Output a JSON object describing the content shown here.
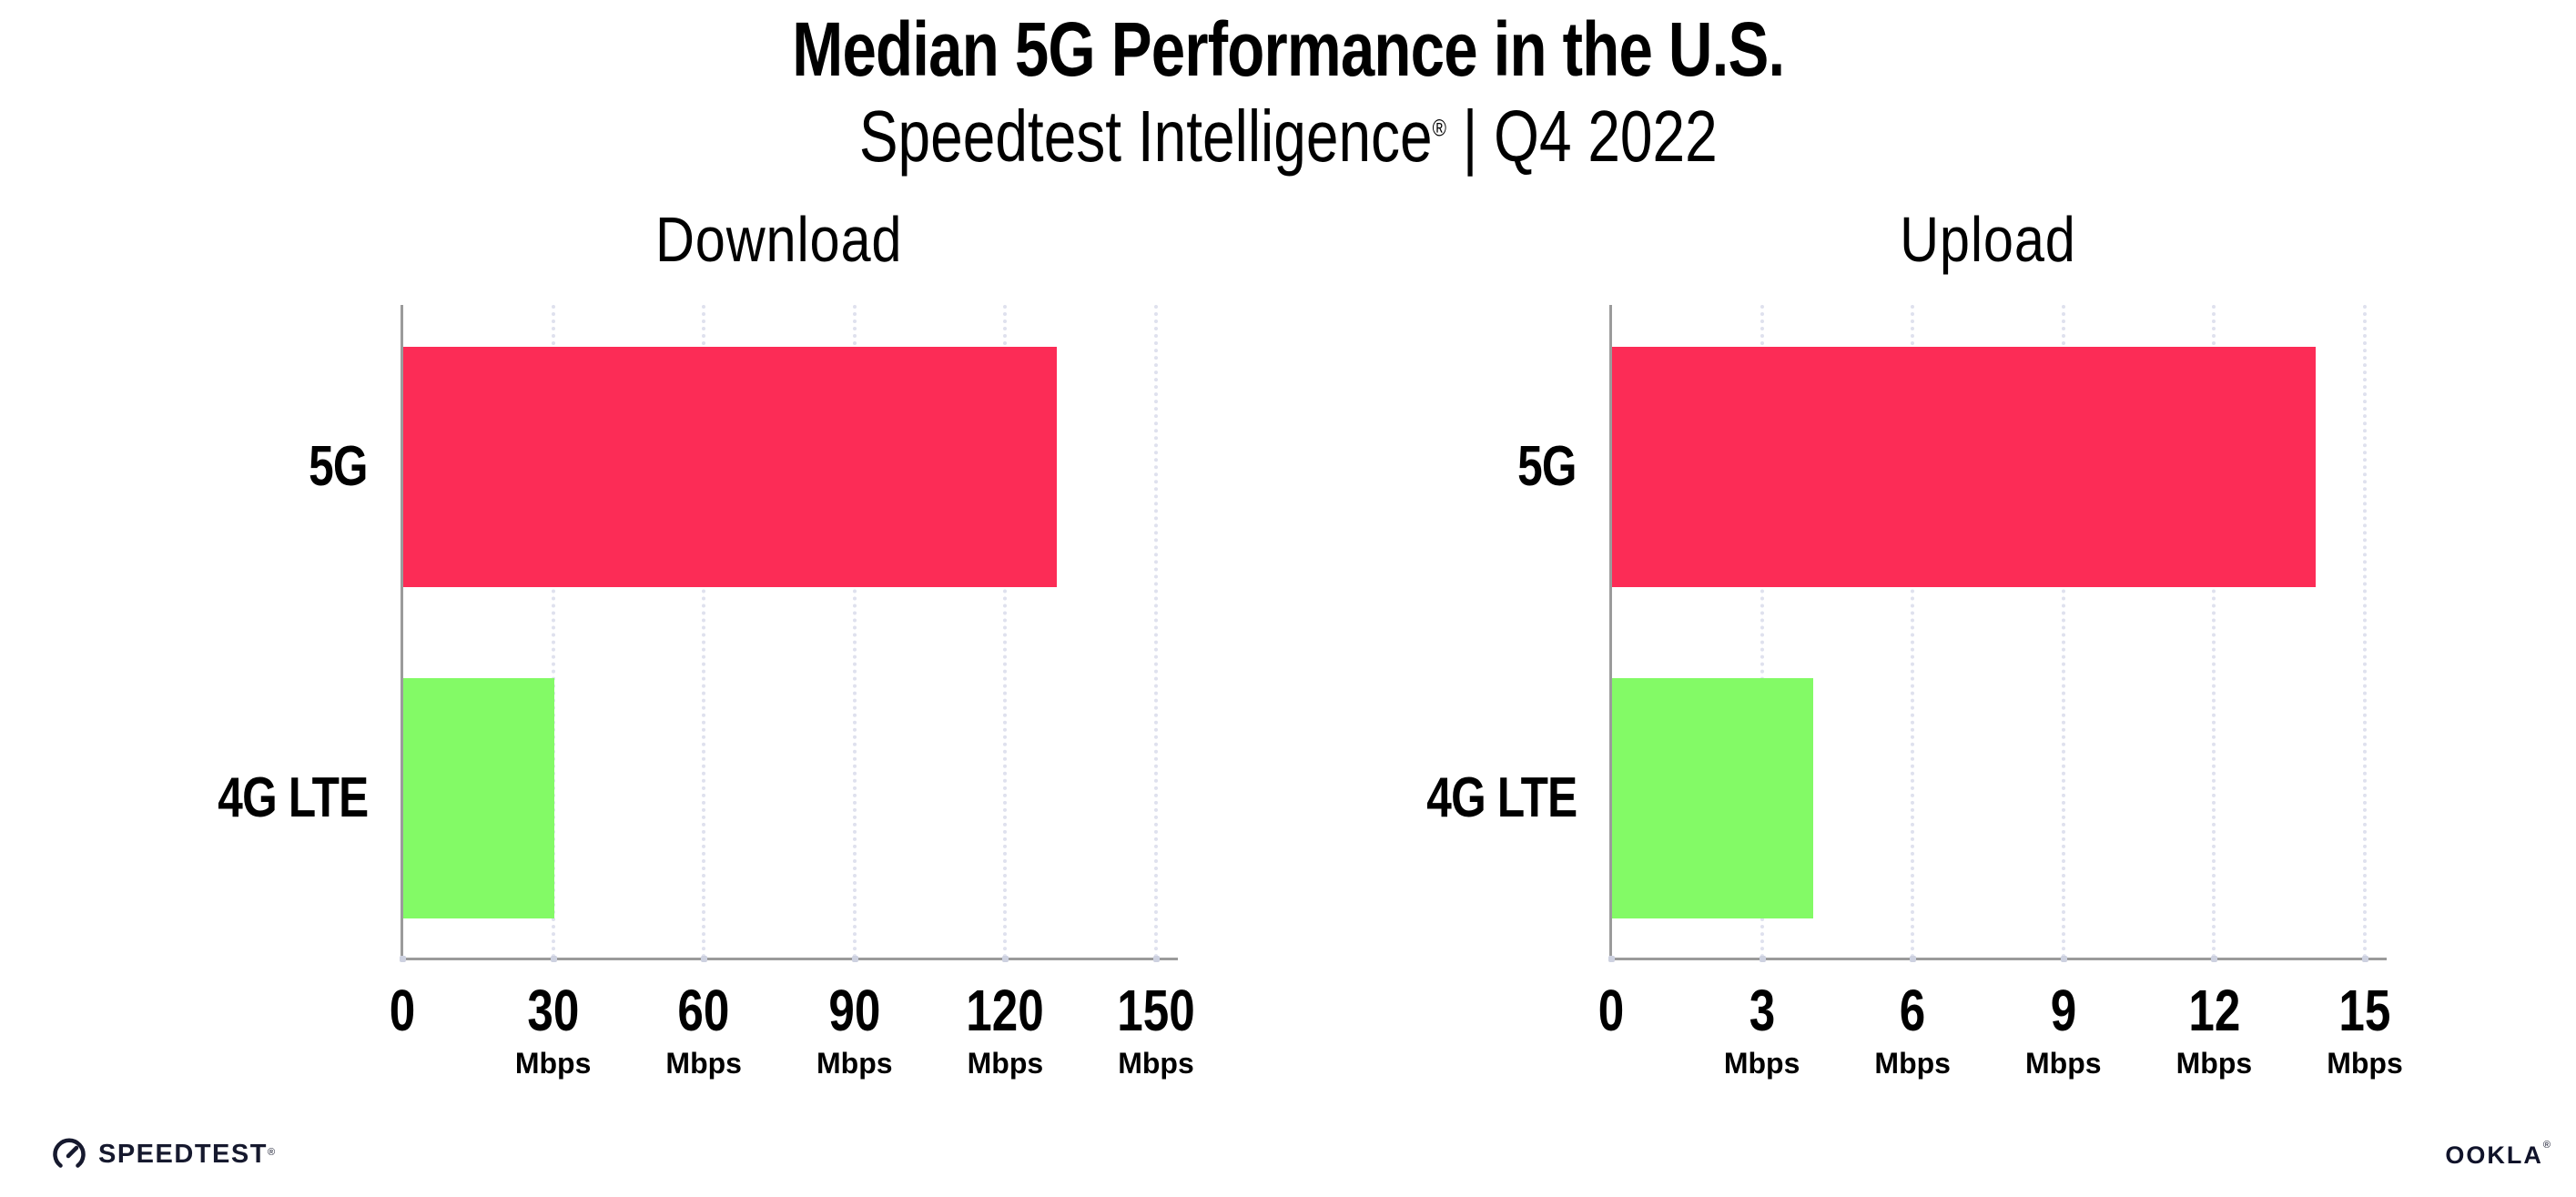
{
  "header": {
    "title": "Median 5G Performance in the U.S.",
    "subtitle_brand": "Speedtest Intelligence",
    "subtitle_reg": "®",
    "subtitle_rest": " | Q4 2022"
  },
  "chart_data": [
    {
      "type": "bar",
      "orientation": "horizontal",
      "title": "Download",
      "categories": [
        "5G",
        "4G LTE"
      ],
      "values": [
        130,
        30
      ],
      "unit": "Mbps",
      "xlim": [
        0,
        150
      ],
      "xticks": [
        0,
        30,
        60,
        90,
        120,
        150
      ],
      "bar_colors": {
        "5G": "#fc2c56",
        "4G LTE": "#83fa66"
      },
      "grid": "dotted-vertical",
      "legend": "none"
    },
    {
      "type": "bar",
      "orientation": "horizontal",
      "title": "Upload",
      "categories": [
        "5G",
        "4G LTE"
      ],
      "values": [
        14,
        4
      ],
      "unit": "Mbps",
      "xlim": [
        0,
        15
      ],
      "xticks": [
        0,
        3,
        6,
        9,
        12,
        15
      ],
      "bar_colors": {
        "5G": "#fc2c56",
        "4G LTE": "#83fa66"
      },
      "grid": "dotted-vertical",
      "legend": "none"
    }
  ],
  "footer": {
    "speedtest_label": "SPEEDTEST",
    "speedtest_mark": "®",
    "ookla_label": "OOKLA",
    "ookla_mark": "®"
  },
  "colors": {
    "bar_5g": "#fc2c56",
    "bar_4g_lte": "#83fa66",
    "gridline": "#dfe1ee",
    "axis": "#9b9b9b",
    "tick_dot": "#cdd1e0",
    "text": "#000000",
    "logo": "#16192e",
    "background": "#ffffff"
  }
}
